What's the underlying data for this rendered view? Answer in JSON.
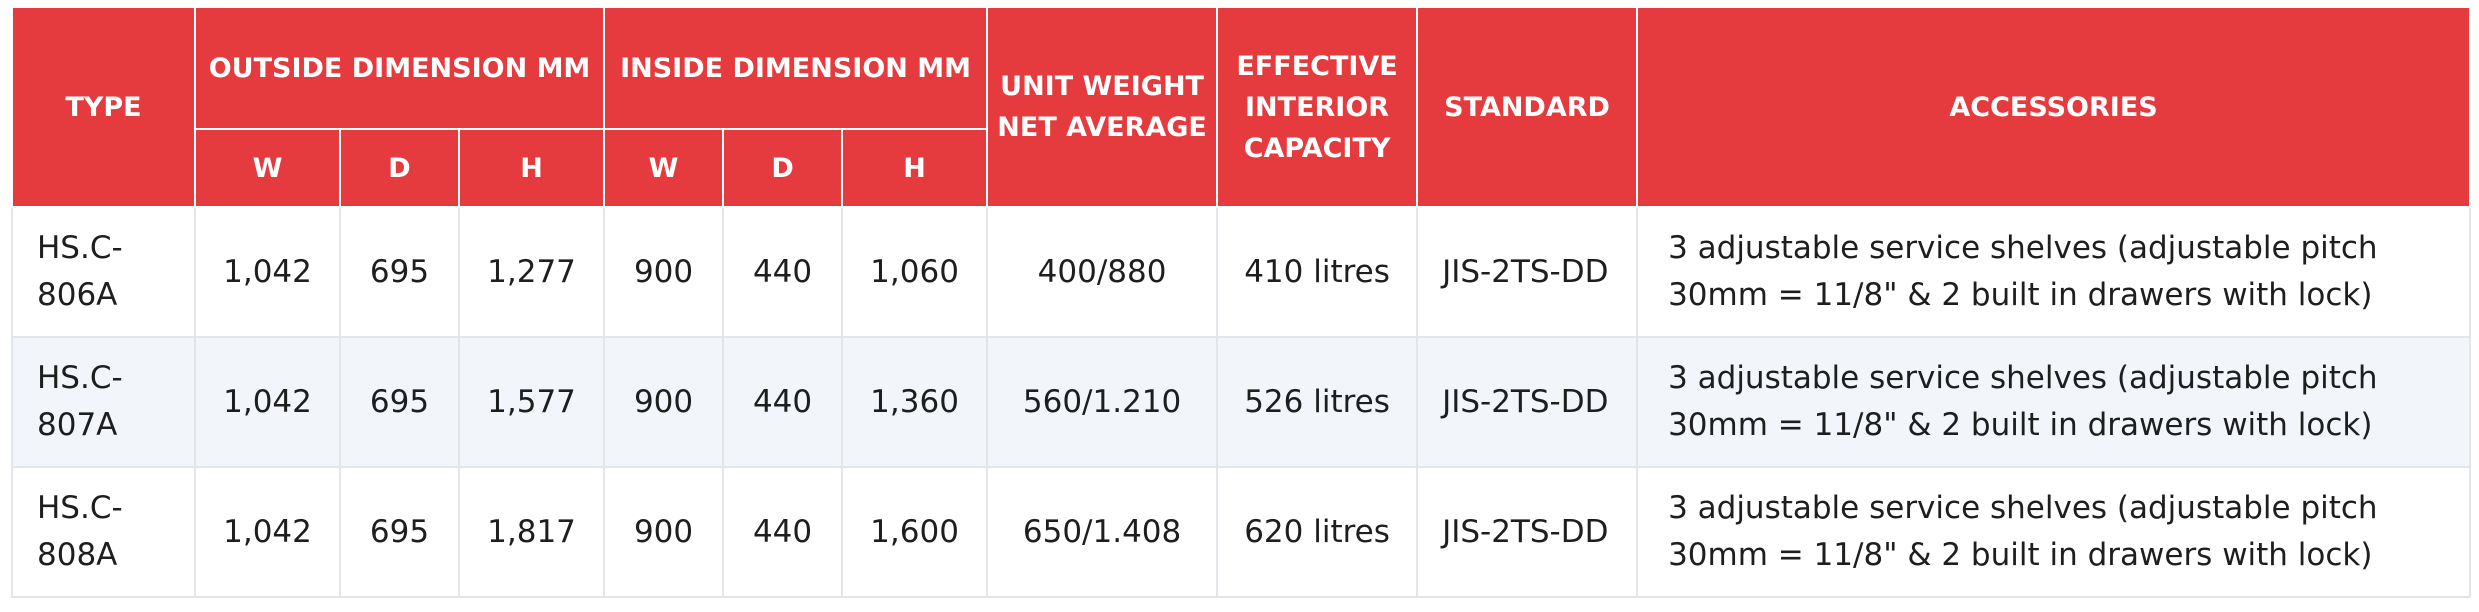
{
  "header": {
    "type": "TYPE",
    "outside_dimension": "OUTSIDE DIMENSION MM",
    "inside_dimension": "INSIDE DIMENSION MM",
    "unit_weight": "UNIT WEIGHT NET AVERAGE",
    "effective_capacity": "EFFECTIVE INTERIOR CAPACITY",
    "standard": "STANDARD",
    "accessories": "ACCESSORIES",
    "sub": {
      "out_w": "W",
      "out_d": "D",
      "out_h": "H",
      "in_w": "W",
      "in_d": "D",
      "in_h": "H"
    }
  },
  "rows": [
    {
      "type": "HS.C-806A",
      "out_w": "1,042",
      "out_d": "695",
      "out_h": "1,277",
      "in_w": "900",
      "in_d": "440",
      "in_h": "1,060",
      "weight": "400/880",
      "capacity": "410 litres",
      "standard": "JIS-2TS-DD",
      "accessories": "3 adjustable service shelves (adjustable pitch 30mm = 11/8\" & 2 built in drawers with lock)"
    },
    {
      "type": "HS.C-807A",
      "out_w": "1,042",
      "out_d": "695",
      "out_h": "1,577",
      "in_w": "900",
      "in_d": "440",
      "in_h": "1,360",
      "weight": "560/1.210",
      "capacity": "526 litres",
      "standard": "JIS-2TS-DD",
      "accessories": "3 adjustable service shelves (adjustable pitch 30mm = 11/8\" & 2 built in drawers with lock)"
    },
    {
      "type": "HS.C-808A",
      "out_w": "1,042",
      "out_d": "695",
      "out_h": "1,817",
      "in_w": "900",
      "in_d": "440",
      "in_h": "1,600",
      "weight": "650/1.408",
      "capacity": "620 litres",
      "standard": "JIS-2TS-DD",
      "accessories": "3 adjustable service shelves (adjustable pitch 30mm = 11/8\" & 2 built in drawers with lock)"
    }
  ],
  "colors": {
    "header_bg": "#e63b3e",
    "header_text": "#ffffff",
    "stripe_bg": "#f2f6fb",
    "border": "#e2e6ea"
  }
}
